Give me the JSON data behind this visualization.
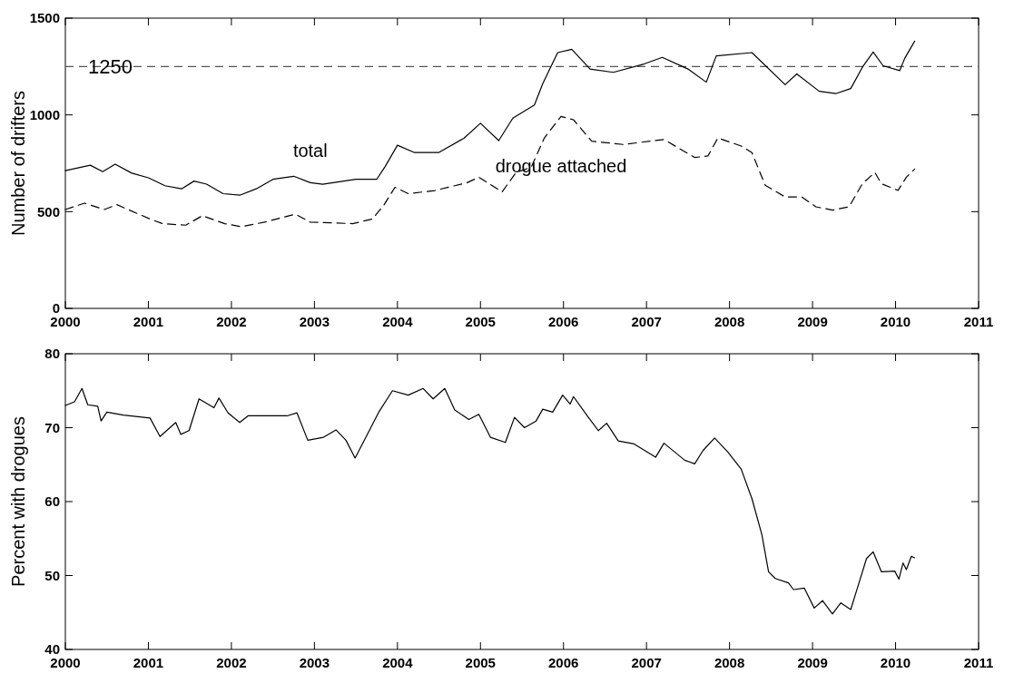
{
  "chart_data": [
    {
      "type": "line",
      "ylabel": "Number of drifters",
      "xlim": [
        2000,
        2011
      ],
      "xticks": [
        2000,
        2001,
        2002,
        2003,
        2004,
        2005,
        2006,
        2007,
        2008,
        2009,
        2010,
        2011
      ],
      "ylim": [
        0,
        1500
      ],
      "yticks": [
        0,
        500,
        1000,
        1500
      ],
      "legend": false,
      "grid": false,
      "ref_lines": [
        {
          "axis": "y",
          "value": 1250,
          "label": "1250",
          "line_style": "dashed",
          "color": "#555555"
        }
      ],
      "series": [
        {
          "name": "total",
          "color": "#000000",
          "line_style": "solid",
          "x": [
            2000.0,
            2000.3,
            2000.45,
            2000.6,
            2000.8,
            2001.0,
            2001.2,
            2001.4,
            2001.55,
            2001.7,
            2001.9,
            2002.1,
            2002.3,
            2002.5,
            2002.75,
            2002.95,
            2003.1,
            2003.5,
            2003.75,
            2003.85,
            2004.0,
            2004.2,
            2004.5,
            2004.8,
            2005.0,
            2005.22,
            2005.39,
            2005.65,
            2005.75,
            2005.93,
            2006.1,
            2006.32,
            2006.6,
            2006.97,
            2007.19,
            2007.5,
            2007.72,
            2007.84,
            2008.27,
            2008.67,
            2008.81,
            2009.08,
            2009.28,
            2009.46,
            2009.6,
            2009.73,
            2009.85,
            2010.05,
            2010.11,
            2010.23
          ],
          "values": [
            712,
            740,
            707,
            745,
            699,
            675,
            634,
            618,
            658,
            642,
            593,
            585,
            618,
            667,
            683,
            650,
            642,
            667,
            667,
            732,
            843,
            806,
            806,
            879,
            957,
            867,
            983,
            1051,
            1161,
            1322,
            1339,
            1237,
            1220,
            1263,
            1297,
            1237,
            1169,
            1305,
            1322,
            1156,
            1212,
            1122,
            1110,
            1136,
            1246,
            1325,
            1254,
            1229,
            1292,
            1381
          ]
        },
        {
          "name": "drogue attached",
          "color": "#000000",
          "line_style": "dashed",
          "x": [
            2000.0,
            2000.23,
            2000.47,
            2000.62,
            2001.02,
            2001.17,
            2001.45,
            2001.65,
            2001.92,
            2002.12,
            2002.4,
            2002.77,
            2002.95,
            2003.46,
            2003.7,
            2003.84,
            2003.97,
            2004.13,
            2004.45,
            2004.84,
            2004.98,
            2005.26,
            2005.43,
            2005.61,
            2005.77,
            2005.97,
            2006.12,
            2006.34,
            2006.72,
            2007.21,
            2007.58,
            2007.74,
            2007.86,
            2008.14,
            2008.27,
            2008.43,
            2008.67,
            2008.87,
            2009.04,
            2009.24,
            2009.44,
            2009.6,
            2009.75,
            2009.83,
            2010.03,
            2010.13,
            2010.23
          ],
          "values": [
            511,
            544,
            511,
            536,
            462,
            438,
            430,
            479,
            438,
            422,
            446,
            487,
            446,
            438,
            462,
            536,
            626,
            593,
            609,
            650,
            678,
            602,
            703,
            729,
            881,
            992,
            975,
            864,
            847,
            873,
            780,
            788,
            881,
            839,
            805,
            636,
            576,
            576,
            525,
            508,
            525,
            644,
            703,
            644,
            610,
            678,
            720
          ]
        }
      ]
    },
    {
      "type": "line",
      "ylabel": "Percent with drogues",
      "xlim": [
        2000,
        2011
      ],
      "xticks": [
        2000,
        2001,
        2002,
        2003,
        2004,
        2005,
        2006,
        2007,
        2008,
        2009,
        2010,
        2011
      ],
      "ylim": [
        40,
        80
      ],
      "yticks": [
        40,
        50,
        60,
        70,
        80
      ],
      "legend": false,
      "grid": false,
      "series": [
        {
          "color": "#000000",
          "line_style": "solid",
          "x": [
            2000.0,
            2000.11,
            2000.2,
            2000.27,
            2000.39,
            2000.43,
            2000.5,
            2000.7,
            2001.02,
            2001.14,
            2001.33,
            2001.39,
            2001.49,
            2001.61,
            2001.79,
            2001.85,
            2001.96,
            2002.1,
            2002.2,
            2002.67,
            2002.79,
            2002.92,
            2003.11,
            2003.26,
            2003.38,
            2003.49,
            2003.62,
            2003.78,
            2003.94,
            2004.13,
            2004.31,
            2004.43,
            2004.57,
            2004.69,
            2004.86,
            2004.98,
            2005.12,
            2005.3,
            2005.41,
            2005.53,
            2005.67,
            2005.75,
            2005.87,
            2005.99,
            2006.08,
            2006.12,
            2006.3,
            2006.42,
            2006.52,
            2006.66,
            2006.85,
            2007.11,
            2007.21,
            2007.46,
            2007.58,
            2007.68,
            2007.82,
            2007.98,
            2008.14,
            2008.27,
            2008.39,
            2008.47,
            2008.55,
            2008.71,
            2008.77,
            2008.9,
            2009.02,
            2009.12,
            2009.24,
            2009.34,
            2009.46,
            2009.54,
            2009.65,
            2009.73,
            2009.83,
            2009.99,
            2010.04,
            2010.09,
            2010.13,
            2010.19,
            2010.23
          ],
          "values": [
            73.0,
            73.5,
            75.3,
            73.1,
            72.9,
            70.9,
            72.1,
            71.7,
            71.3,
            68.8,
            70.7,
            69.1,
            69.6,
            73.9,
            72.7,
            74.0,
            72.0,
            70.7,
            71.6,
            71.6,
            72.0,
            68.3,
            68.7,
            69.7,
            68.3,
            65.9,
            68.7,
            72.2,
            75.0,
            74.4,
            75.3,
            73.9,
            75.3,
            72.4,
            71.1,
            71.8,
            68.7,
            68.0,
            71.4,
            70.0,
            70.9,
            72.5,
            72.1,
            74.4,
            73.2,
            74.2,
            71.4,
            69.6,
            70.6,
            68.2,
            67.8,
            66.0,
            67.9,
            65.6,
            65.1,
            66.9,
            68.6,
            66.7,
            64.4,
            60.4,
            55.5,
            50.5,
            49.6,
            49.0,
            48.1,
            48.3,
            45.6,
            46.6,
            44.8,
            46.3,
            45.4,
            48.3,
            52.3,
            53.2,
            50.5,
            50.6,
            49.5,
            51.7,
            50.8,
            52.6,
            52.4
          ]
        }
      ]
    }
  ]
}
